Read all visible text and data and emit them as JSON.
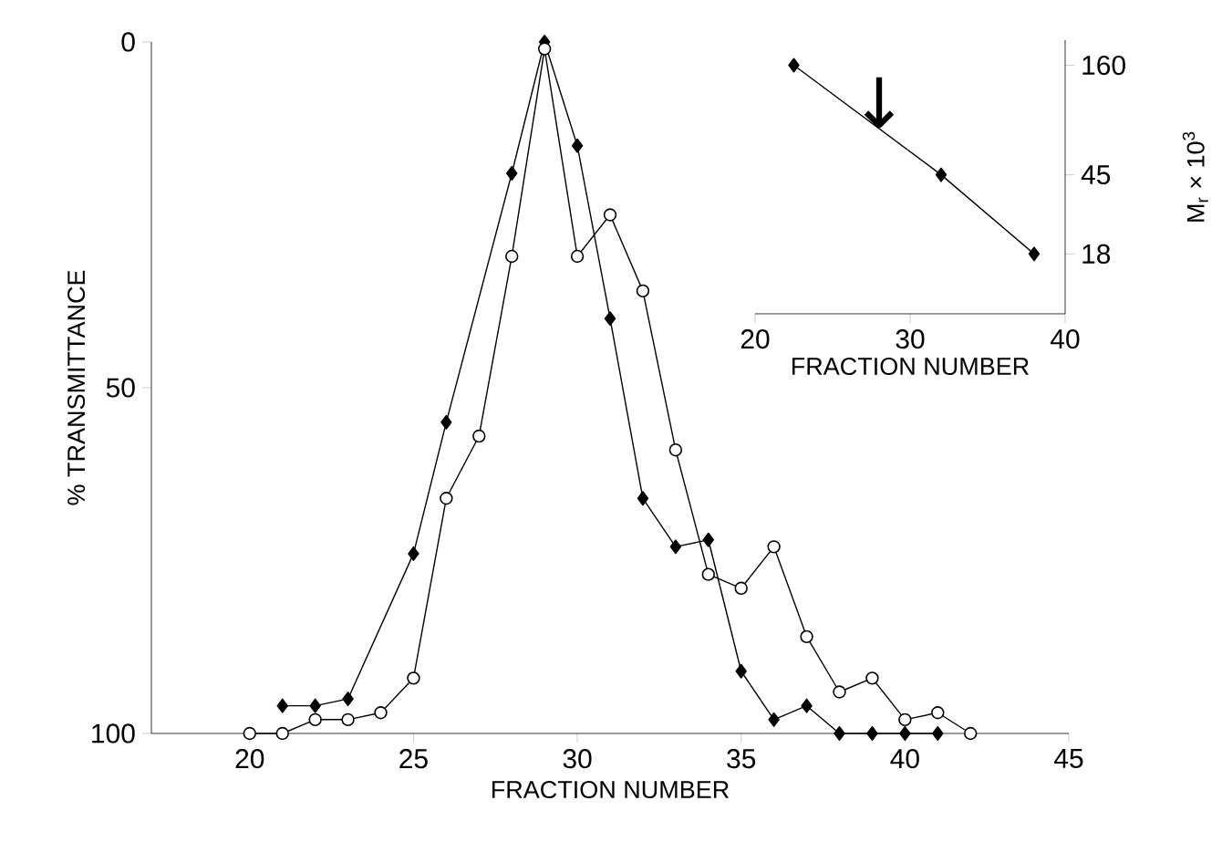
{
  "chart_data": [
    {
      "type": "line",
      "xlabel": "FRACTION NUMBER",
      "ylabel": "% TRANSMITTANCE",
      "xlim": [
        17,
        45
      ],
      "ylim": [
        100,
        0
      ],
      "xticks": [
        20,
        25,
        30,
        35,
        40,
        45
      ],
      "yticks": [
        0,
        50,
        100
      ],
      "line_style": "solid",
      "series": [
        {
          "color": "#000000",
          "marker": "diamond",
          "x": [
            21,
            22,
            23,
            25,
            26,
            28,
            29,
            30,
            31,
            32,
            33,
            34,
            35,
            36,
            37,
            38,
            39,
            40,
            41
          ],
          "values": [
            96,
            96,
            95,
            74,
            55,
            19,
            0,
            15,
            40,
            66,
            73,
            72,
            91,
            98,
            96,
            100,
            100,
            100,
            100
          ]
        },
        {
          "color": "#000000",
          "marker": "circle",
          "x": [
            20,
            21,
            22,
            23,
            24,
            25,
            26,
            27,
            28,
            29,
            30,
            31,
            32,
            33,
            34,
            35,
            36,
            37,
            38,
            39,
            40,
            41,
            42
          ],
          "values": [
            100,
            100,
            98,
            98,
            97,
            92,
            66,
            57,
            31,
            1,
            31,
            25,
            36,
            59,
            77,
            79,
            73,
            86,
            94,
            92,
            98,
            97,
            100
          ]
        }
      ]
    },
    {
      "type": "line",
      "xlabel": "FRACTION NUMBER",
      "ylabel": "M$_{r}$ × 10$^{3}$",
      "xlim": [
        20,
        40
      ],
      "ylim": [
        9,
        214
      ],
      "log": "y",
      "xticks": [
        20,
        30,
        40
      ],
      "yticks": [
        18,
        45,
        160
      ],
      "marker": "diamond",
      "line_style": "solid",
      "x": [
        22.5,
        32,
        38
      ],
      "values": [
        160,
        45,
        18
      ],
      "color": "#000000",
      "annotations": [
        {
          "text": "↓",
          "x": 28,
          "y": 77
        }
      ]
    }
  ]
}
